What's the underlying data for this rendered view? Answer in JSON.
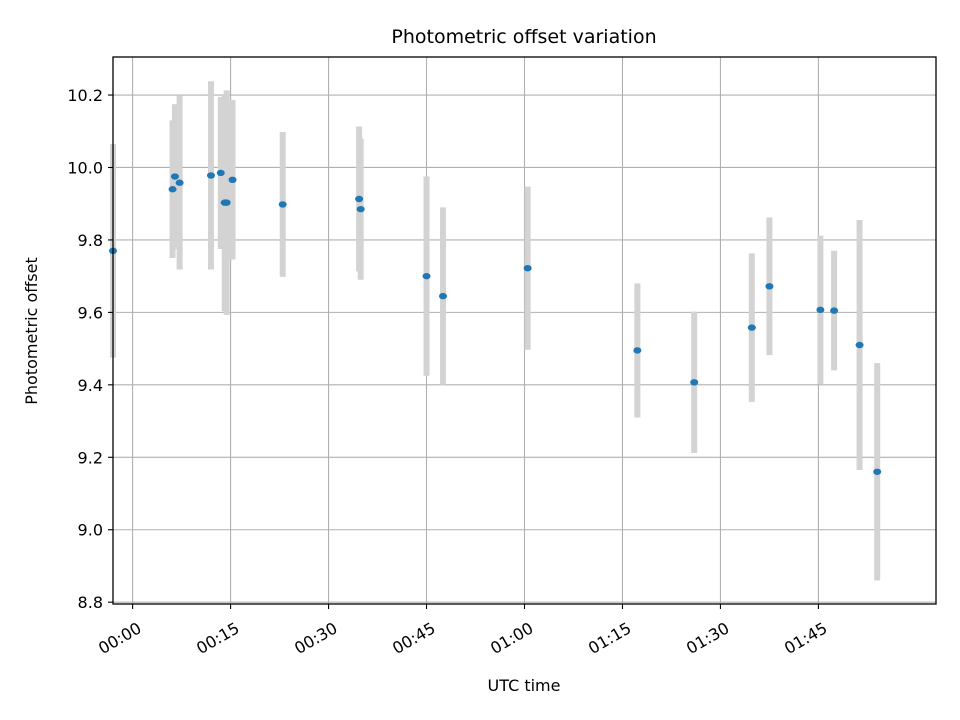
{
  "chart_data": {
    "type": "scatter",
    "title": "Photometric offset variation",
    "xlabel": "UTC time",
    "ylabel": "Photometric offset",
    "grid": true,
    "xlim": [
      -0.05,
      2.05
    ],
    "ylim": [
      8.795,
      10.305
    ],
    "x_ticks": [
      0,
      0.25,
      0.5,
      0.75,
      1.0,
      1.25,
      1.5,
      1.75
    ],
    "x_tick_labels": [
      "00:00",
      "00:15",
      "00:30",
      "00:45",
      "01:00",
      "01:15",
      "01:30",
      "01:45"
    ],
    "y_ticks": [
      8.8,
      9.0,
      9.2,
      9.4,
      9.6,
      9.8,
      10.0,
      10.2
    ],
    "y_tick_labels": [
      "8.8",
      "9.0",
      "9.2",
      "9.4",
      "9.6",
      "9.8",
      "10.0",
      "10.2"
    ],
    "x_units": "hours after 00:00 UTC",
    "marker_color": "#1f77b4",
    "errorbar_color": "#d3d3d3",
    "points": [
      {
        "x": -0.05,
        "y": 9.77,
        "err": 0.295
      },
      {
        "x": 0.102,
        "y": 9.94,
        "err": 0.19
      },
      {
        "x": 0.108,
        "y": 9.975,
        "err": 0.2
      },
      {
        "x": 0.12,
        "y": 9.958,
        "err": 0.24
      },
      {
        "x": 0.2,
        "y": 9.978,
        "err": 0.26
      },
      {
        "x": 0.225,
        "y": 9.985,
        "err": 0.21
      },
      {
        "x": 0.235,
        "y": 9.903,
        "err": 0.3
      },
      {
        "x": 0.24,
        "y": 9.903,
        "err": 0.31
      },
      {
        "x": 0.255,
        "y": 9.966,
        "err": 0.22
      },
      {
        "x": 0.383,
        "y": 9.898,
        "err": 0.2
      },
      {
        "x": 0.578,
        "y": 9.913,
        "err": 0.2
      },
      {
        "x": 0.582,
        "y": 9.885,
        "err": 0.195
      },
      {
        "x": 0.75,
        "y": 9.7,
        "err": 0.275
      },
      {
        "x": 0.792,
        "y": 9.645,
        "err": 0.245
      },
      {
        "x": 1.008,
        "y": 9.722,
        "err": 0.225
      },
      {
        "x": 1.288,
        "y": 9.495,
        "err": 0.185
      },
      {
        "x": 1.433,
        "y": 9.407,
        "err": 0.195
      },
      {
        "x": 1.58,
        "y": 9.558,
        "err": 0.205
      },
      {
        "x": 1.625,
        "y": 9.672,
        "err": 0.19
      },
      {
        "x": 1.755,
        "y": 9.607,
        "err": 0.205
      },
      {
        "x": 1.79,
        "y": 9.605,
        "err": 0.165
      },
      {
        "x": 1.855,
        "y": 9.51,
        "err": 0.345
      },
      {
        "x": 1.9,
        "y": 9.16,
        "err": 0.3
      }
    ]
  }
}
